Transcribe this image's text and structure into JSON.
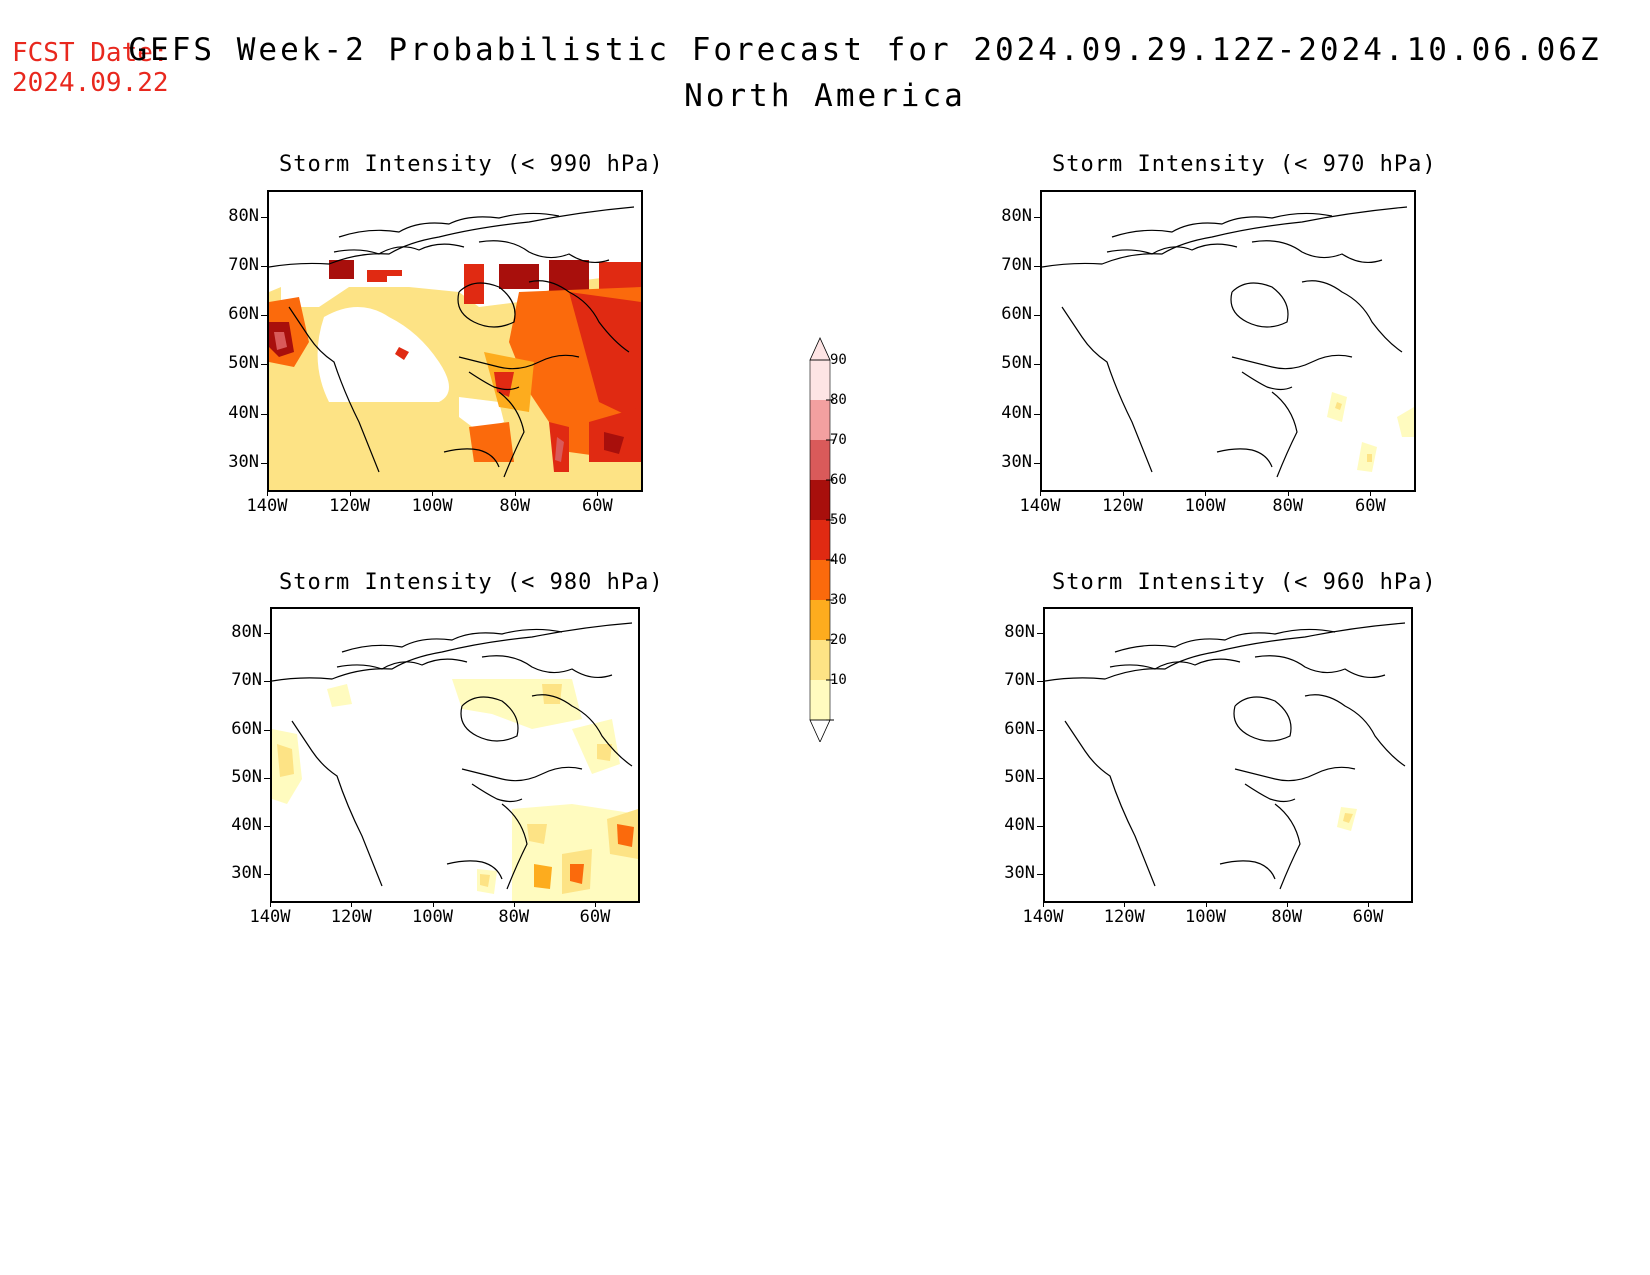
{
  "header": {
    "fcst_label": "FCST Date:",
    "fcst_date": "2024.09.22",
    "title": "GEFS Week-2 Probabilistic Forecast for 2024.09.29.12Z-2024.10.06.06Z",
    "subtitle": "North America"
  },
  "panels": [
    {
      "id": "p990",
      "title": "Storm Intensity (< 990 hPa)"
    },
    {
      "id": "p970",
      "title": "Storm Intensity (< 970 hPa)"
    },
    {
      "id": "p980",
      "title": "Storm Intensity (< 980 hPa)"
    },
    {
      "id": "p960",
      "title": "Storm Intensity (< 960 hPa)"
    }
  ],
  "axes": {
    "lat_labels": [
      "80N",
      "70N",
      "60N",
      "50N",
      "40N",
      "30N"
    ],
    "lon_labels": [
      "140W",
      "120W",
      "100W",
      "80W",
      "60W"
    ]
  },
  "colorbar": {
    "levels": [
      "10",
      "20",
      "30",
      "40",
      "50",
      "60",
      "70",
      "80",
      "90"
    ],
    "colors": [
      "#fffbbf",
      "#fde385",
      "#fdac1e",
      "#fb6a0c",
      "#e02a12",
      "#a80f0c",
      "#d95a5a",
      "#f3a0a0",
      "#fde4e4"
    ]
  }
}
